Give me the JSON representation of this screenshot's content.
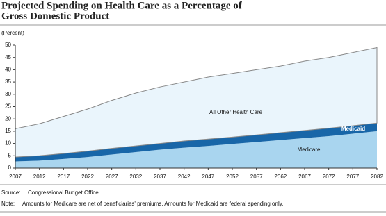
{
  "chart_data": {
    "type": "stacked-area",
    "title": [
      "Projected Spending on Health Care as a Percentage of",
      "Gross Domestic Product"
    ],
    "y_label": "(Percent)",
    "x": [
      2007,
      2012,
      2017,
      2022,
      2027,
      2032,
      2037,
      2042,
      2047,
      2052,
      2057,
      2062,
      2067,
      2072,
      2077,
      2082
    ],
    "xlim": [
      2007,
      2082
    ],
    "xticks": [
      2007,
      2012,
      2017,
      2022,
      2027,
      2032,
      2037,
      2042,
      2047,
      2052,
      2057,
      2062,
      2067,
      2072,
      2077,
      2082
    ],
    "ylim": [
      0,
      50
    ],
    "yticks": [
      0,
      5,
      10,
      15,
      20,
      25,
      30,
      35,
      40,
      45,
      50
    ],
    "series": [
      {
        "name": "Medicare",
        "color": "#a9d5ef",
        "values": [
          2.7,
          3,
          3.7,
          4.5,
          5.5,
          6.5,
          7.5,
          8.3,
          9,
          9.8,
          10.6,
          11.4,
          12.2,
          13,
          14,
          15
        ]
      },
      {
        "name": "Medicaid",
        "color": "#1866a8",
        "values": [
          1.8,
          2,
          2.2,
          2.4,
          2.5,
          2.5,
          2.5,
          2.7,
          2.8,
          2.8,
          2.9,
          3,
          3.1,
          3.2,
          3.2,
          3.3
        ]
      },
      {
        "name": "All Other Health Care",
        "color": "#eaf5fc",
        "values": [
          11.5,
          13,
          15.1,
          17.1,
          19.5,
          21.5,
          23,
          24,
          25.2,
          25.9,
          26.5,
          27.1,
          28.2,
          28.8,
          29.8,
          30.7
        ]
      }
    ],
    "notes": [
      {
        "label": "Source:",
        "text": "Congressional Budget Office."
      },
      {
        "label": "Note:",
        "text": "Amounts for Medicare are net of beneficiaries' premiums. Amounts for Medicaid are federal spending only."
      }
    ]
  }
}
